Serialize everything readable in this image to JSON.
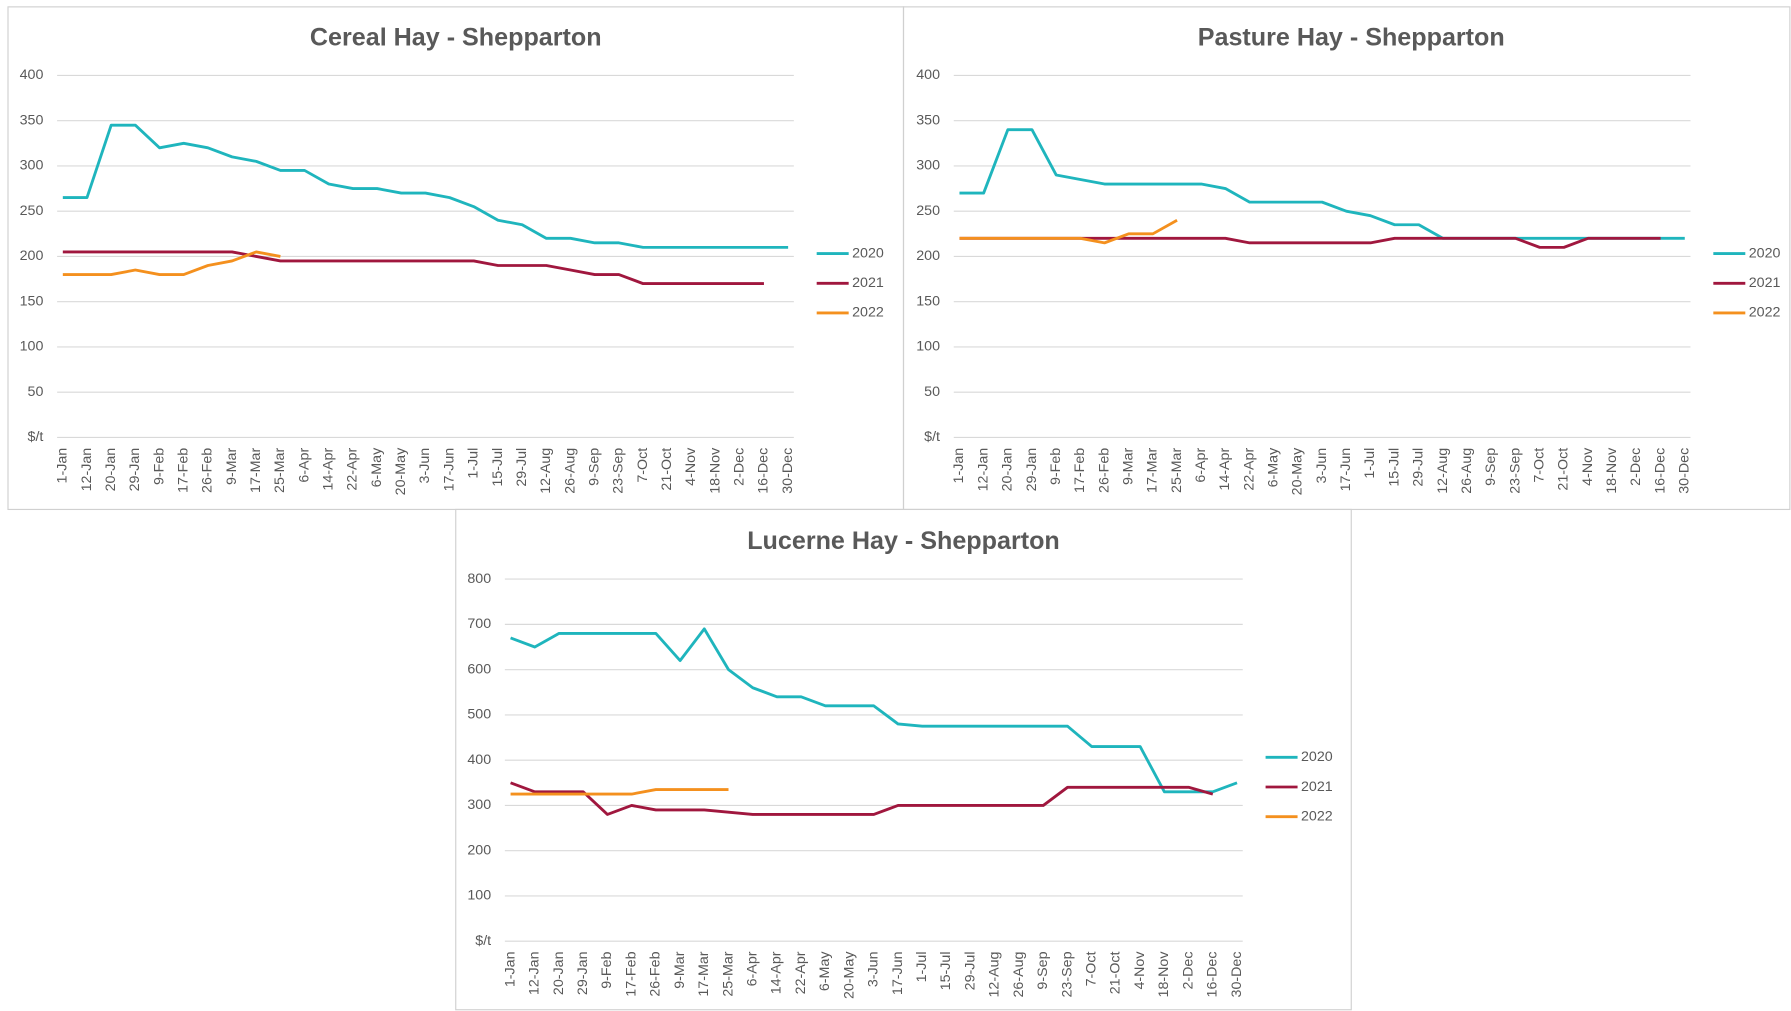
{
  "chart_data": [
    {
      "type": "line",
      "title": "Cereal Hay - Shepparton",
      "categories": [
        "1-Jan",
        "12-Jan",
        "20-Jan",
        "29-Jan",
        "9-Feb",
        "17-Feb",
        "26-Feb",
        "9-Mar",
        "17-Mar",
        "25-Mar",
        "6-Apr",
        "14-Apr",
        "22-Apr",
        "6-May",
        "20-May",
        "3-Jun",
        "17-Jun",
        "1-Jul",
        "15-Jul",
        "29-Jul",
        "12-Aug",
        "26-Aug",
        "9-Sep",
        "23-Sep",
        "7-Oct",
        "21-Oct",
        "4-Nov",
        "18-Nov",
        "2-Dec",
        "16-Dec",
        "30-Dec"
      ],
      "series": [
        {
          "name": "2020",
          "color": "#1fb5bd",
          "values": [
            265,
            265,
            345,
            345,
            320,
            325,
            320,
            310,
            305,
            295,
            295,
            280,
            275,
            275,
            270,
            270,
            265,
            255,
            240,
            235,
            220,
            220,
            215,
            215,
            210,
            210,
            210,
            210,
            210,
            210,
            210
          ]
        },
        {
          "name": "2021",
          "color": "#a0173e",
          "values": [
            205,
            205,
            205,
            205,
            205,
            205,
            205,
            205,
            200,
            195,
            195,
            195,
            195,
            195,
            195,
            195,
            195,
            195,
            190,
            190,
            190,
            185,
            180,
            180,
            170,
            170,
            170,
            170,
            170,
            170,
            null
          ]
        },
        {
          "name": "2022",
          "color": "#f4901e",
          "values": [
            180,
            180,
            180,
            185,
            180,
            180,
            190,
            195,
            205,
            200,
            null,
            null,
            null,
            null,
            null,
            null,
            null,
            null,
            null,
            null,
            null,
            null,
            null,
            null,
            null,
            null,
            null,
            null,
            null,
            null,
            null
          ]
        }
      ],
      "ylim": [
        0,
        400
      ],
      "yticks": [
        {
          "value": 0,
          "label": "$/t"
        },
        50,
        100,
        150,
        200,
        250,
        300,
        350,
        400
      ],
      "grid": true,
      "legend": "right"
    },
    {
      "type": "line",
      "title": "Pasture Hay - Shepparton",
      "categories": [
        "1-Jan",
        "12-Jan",
        "20-Jan",
        "29-Jan",
        "9-Feb",
        "17-Feb",
        "26-Feb",
        "9-Mar",
        "17-Mar",
        "25-Mar",
        "6-Apr",
        "14-Apr",
        "22-Apr",
        "6-May",
        "20-May",
        "3-Jun",
        "17-Jun",
        "1-Jul",
        "15-Jul",
        "29-Jul",
        "12-Aug",
        "26-Aug",
        "9-Sep",
        "23-Sep",
        "7-Oct",
        "21-Oct",
        "4-Nov",
        "18-Nov",
        "2-Dec",
        "16-Dec",
        "30-Dec"
      ],
      "series": [
        {
          "name": "2020",
          "color": "#1fb5bd",
          "values": [
            270,
            270,
            340,
            340,
            290,
            285,
            280,
            280,
            280,
            280,
            280,
            275,
            260,
            260,
            260,
            260,
            250,
            245,
            235,
            235,
            220,
            220,
            220,
            220,
            220,
            220,
            220,
            220,
            220,
            220,
            220
          ]
        },
        {
          "name": "2021",
          "color": "#a0173e",
          "values": [
            220,
            220,
            220,
            220,
            220,
            220,
            220,
            220,
            220,
            220,
            220,
            220,
            215,
            215,
            215,
            215,
            215,
            215,
            220,
            220,
            220,
            220,
            220,
            220,
            210,
            210,
            220,
            220,
            220,
            220,
            null
          ]
        },
        {
          "name": "2022",
          "color": "#f4901e",
          "values": [
            220,
            220,
            220,
            220,
            220,
            220,
            215,
            225,
            225,
            240,
            null,
            null,
            null,
            null,
            null,
            null,
            null,
            null,
            null,
            null,
            null,
            null,
            null,
            null,
            null,
            null,
            null,
            null,
            null,
            null,
            null
          ]
        }
      ],
      "ylim": [
        0,
        400
      ],
      "yticks": [
        {
          "value": 0,
          "label": "$/t"
        },
        50,
        100,
        150,
        200,
        250,
        300,
        350,
        400
      ],
      "grid": true,
      "legend": "right"
    },
    {
      "type": "line",
      "title": "Lucerne Hay - Shepparton",
      "categories": [
        "1-Jan",
        "12-Jan",
        "20-Jan",
        "29-Jan",
        "9-Feb",
        "17-Feb",
        "26-Feb",
        "9-Mar",
        "17-Mar",
        "25-Mar",
        "6-Apr",
        "14-Apr",
        "22-Apr",
        "6-May",
        "20-May",
        "3-Jun",
        "17-Jun",
        "1-Jul",
        "15-Jul",
        "29-Jul",
        "12-Aug",
        "26-Aug",
        "9-Sep",
        "23-Sep",
        "7-Oct",
        "21-Oct",
        "4-Nov",
        "18-Nov",
        "2-Dec",
        "16-Dec",
        "30-Dec"
      ],
      "series": [
        {
          "name": "2020",
          "color": "#1fb5bd",
          "values": [
            670,
            650,
            680,
            680,
            680,
            680,
            680,
            620,
            690,
            600,
            560,
            540,
            540,
            520,
            520,
            520,
            480,
            475,
            475,
            475,
            475,
            475,
            475,
            475,
            430,
            430,
            430,
            330,
            330,
            330,
            350
          ]
        },
        {
          "name": "2021",
          "color": "#a0173e",
          "values": [
            350,
            330,
            330,
            330,
            280,
            300,
            290,
            290,
            290,
            285,
            280,
            280,
            280,
            280,
            280,
            280,
            300,
            300,
            300,
            300,
            300,
            300,
            300,
            340,
            340,
            340,
            340,
            340,
            340,
            325,
            null
          ]
        },
        {
          "name": "2022",
          "color": "#f4901e",
          "values": [
            325,
            325,
            325,
            325,
            325,
            325,
            335,
            335,
            335,
            335,
            null,
            null,
            null,
            null,
            null,
            null,
            null,
            null,
            null,
            null,
            null,
            null,
            null,
            null,
            null,
            null,
            null,
            null,
            null,
            null,
            null
          ]
        }
      ],
      "ylim": [
        0,
        800
      ],
      "yticks": [
        {
          "value": 0,
          "label": "$/t"
        },
        100,
        200,
        300,
        400,
        500,
        600,
        700,
        800
      ],
      "grid": true,
      "legend": "right"
    }
  ]
}
